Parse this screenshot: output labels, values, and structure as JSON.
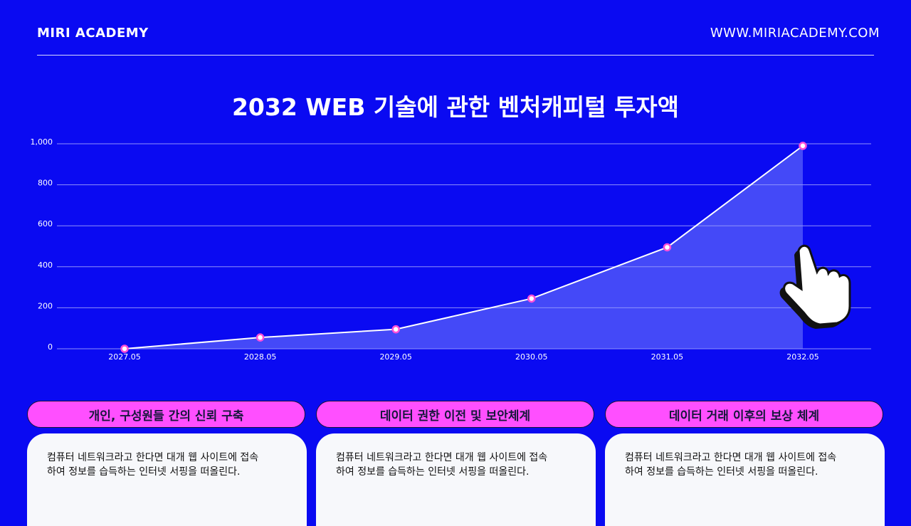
{
  "header": {
    "brand": "MIRI ACADEMY",
    "url": "WWW.MIRIACADEMY.COM"
  },
  "chart_data": {
    "type": "line",
    "title": "2032 WEB 기술에 관한 벤처캐피털 투자액",
    "categories": [
      "2027.05",
      "2028.05",
      "2029.05",
      "2030.05",
      "2031.05",
      "2032.05"
    ],
    "values": [
      0,
      55,
      95,
      245,
      495,
      990
    ],
    "color": "#ffffff",
    "marker_color": "#ff4fd8",
    "area": true,
    "ylim": [
      0,
      1000
    ],
    "yticks": [
      0,
      200,
      400,
      600,
      800,
      {
        "value": 1000,
        "label": "1,000"
      }
    ],
    "grid": true
  },
  "cards": [
    {
      "title": "개인, 구성원들 간의 신뢰 구축",
      "lines": [
        "컴퓨터 네트워크라고 한다면 대개 웹 사이트에 접속",
        "하여 정보를 습득하는 인터넷 서핑을 떠올린다."
      ]
    },
    {
      "title": "데이터 권한 이전 및 보안체계",
      "lines": [
        "컴퓨터 네트워크라고 한다면 대개 웹 사이트에 접속",
        "하여 정보를 습득하는 인터넷 서핑을 떠올린다."
      ]
    },
    {
      "title": "데이터 거래 이후의 보상 체계",
      "lines": [
        "컴퓨터 네트워크라고 한다면 대개 웹 사이트에 접속",
        "하여 정보를 습득하는 인터넷 서핑을 떠올린다."
      ]
    }
  ]
}
